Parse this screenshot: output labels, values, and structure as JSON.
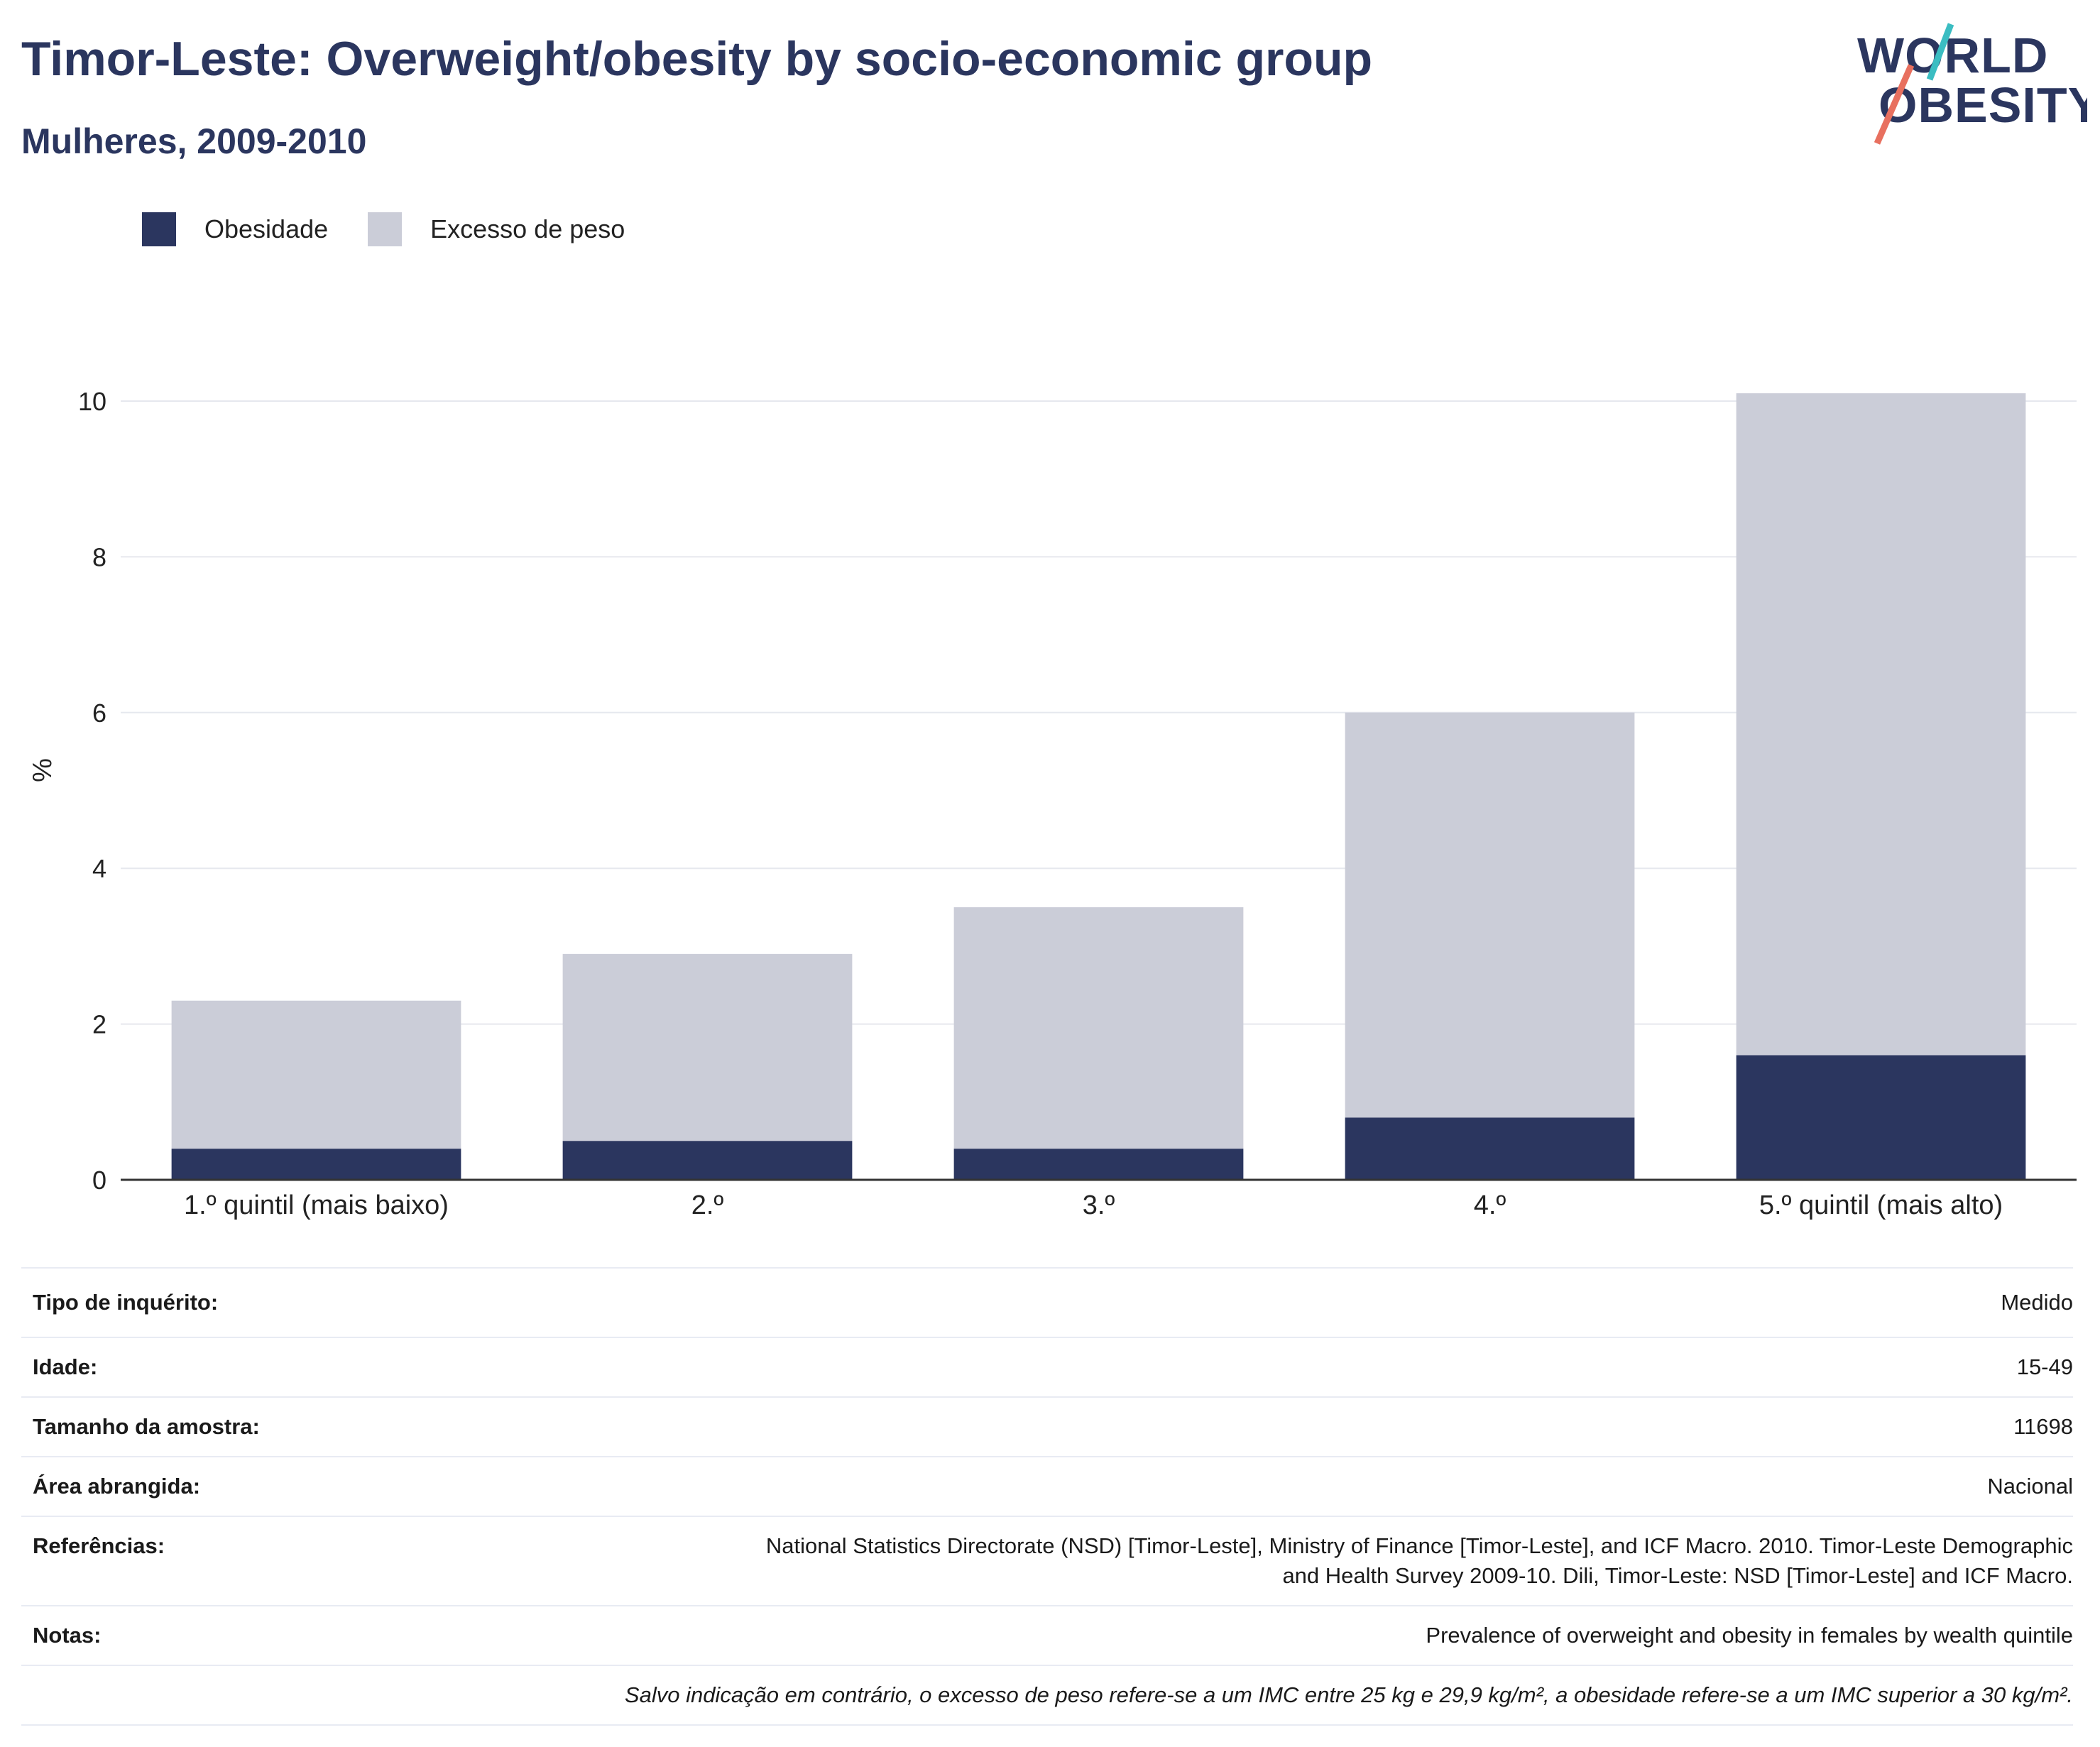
{
  "header": {
    "title": "Timor-Leste: Overweight/obesity by socio-economic group",
    "subtitle": "Mulheres, 2009-2010"
  },
  "logo": {
    "line1": "WORLD",
    "line2": "OBESITY"
  },
  "legend": {
    "items": [
      {
        "label": "Obesidade",
        "color": "#2b365f"
      },
      {
        "label": "Excesso de peso",
        "color": "#cbcdd8"
      }
    ]
  },
  "chart_data": {
    "type": "bar",
    "stacked": true,
    "categories": [
      "1.º quintil (mais baixo)",
      "2.º",
      "3.º",
      "4.º",
      "5.º quintil (mais alto)"
    ],
    "series": [
      {
        "name": "Obesidade",
        "color": "#2b365f",
        "values": [
          0.4,
          0.5,
          0.4,
          0.8,
          1.6
        ]
      },
      {
        "name": "Excesso de peso",
        "color": "#cbcdd8",
        "values": [
          1.9,
          2.4,
          3.1,
          5.2,
          8.5
        ]
      }
    ],
    "ylabel": "%",
    "ylim": [
      0,
      10
    ],
    "yticks": [
      0,
      2,
      4,
      6,
      8,
      10
    ],
    "grid": true,
    "legend_position": "top-left"
  },
  "info": {
    "rows": [
      {
        "label": "Tipo de inquérito:",
        "value": "Medido"
      },
      {
        "label": "Idade:",
        "value": "15-49"
      },
      {
        "label": "Tamanho da amostra:",
        "value": "11698"
      },
      {
        "label": "Área abrangida:",
        "value": "Nacional"
      },
      {
        "label": "Referências:",
        "value_line1": "National Statistics Directorate (NSD) [Timor-Leste], Ministry of Finance [Timor-Leste], and ICF Macro. 2010. Timor-Leste Demographic",
        "value_line2": "and Health Survey 2009-10. Dili, Timor-Leste: NSD [Timor-Leste] and ICF Macro."
      },
      {
        "label": "Notas:",
        "value": "Prevalence of overweight and obesity in females by wealth quintile"
      }
    ],
    "footnote": "Salvo indicação em contrário, o excesso de peso refere-se a um IMC entre 25 kg e 29,9 kg/m², a obesidade refere-se a um IMC superior a 30 kg/m²."
  }
}
